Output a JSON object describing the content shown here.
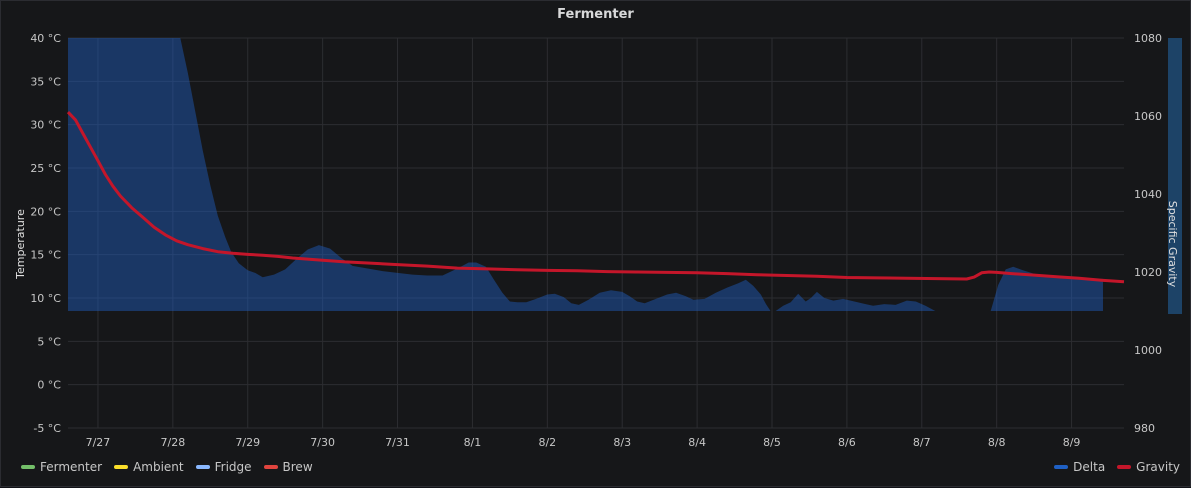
{
  "panel": {
    "title": "Fermenter"
  },
  "chart_data": {
    "type": "line",
    "title": "Fermenter",
    "x_tick_labels": [
      "7/27",
      "7/28",
      "7/29",
      "7/30",
      "7/31",
      "8/1",
      "8/2",
      "8/3",
      "8/4",
      "8/5",
      "8/6",
      "8/7",
      "8/8",
      "8/9"
    ],
    "left_axis": {
      "label": "Temperature",
      "unit": "°C",
      "ticks": [
        "40 °C",
        "35 °C",
        "30 °C",
        "25 °C",
        "20 °C",
        "15 °C",
        "10 °C",
        "5 °C",
        "0 °C",
        "-5 °C"
      ],
      "ylim": [
        -5,
        40
      ]
    },
    "right_axis": {
      "label": "Specific Gravity",
      "ticks": [
        "1080",
        "1060",
        "1040",
        "1020",
        "1000",
        "980"
      ],
      "ylim": [
        980,
        1080
      ]
    },
    "x_range": [
      -0.4,
      13.7
    ],
    "series": [
      {
        "name": "Brew",
        "color": "#e0443e",
        "axis": "left",
        "points": []
      },
      {
        "name": "Delta",
        "color": "#1f60c4",
        "axis": "left",
        "style": "area",
        "baseline": 8.5,
        "points": [
          [
            -0.4,
            40.9
          ],
          [
            1.02,
            40.9
          ],
          [
            1.1,
            40.3
          ],
          [
            1.2,
            36
          ],
          [
            1.3,
            31.5
          ],
          [
            1.4,
            27
          ],
          [
            1.5,
            23
          ],
          [
            1.6,
            19.5
          ],
          [
            1.7,
            17
          ],
          [
            1.78,
            15.3
          ],
          [
            1.88,
            14
          ],
          [
            2.0,
            13.2
          ],
          [
            2.1,
            12.9
          ],
          [
            2.2,
            12.4
          ],
          [
            2.35,
            12.7
          ],
          [
            2.5,
            13.3
          ],
          [
            2.65,
            14.5
          ],
          [
            2.8,
            15.6
          ],
          [
            2.95,
            16.1
          ],
          [
            3.1,
            15.7
          ],
          [
            3.25,
            14.6
          ],
          [
            3.4,
            13.7
          ],
          [
            3.6,
            13.4
          ],
          [
            3.8,
            13.1
          ],
          [
            4.0,
            12.9
          ],
          [
            4.2,
            12.7
          ],
          [
            4.4,
            12.6
          ],
          [
            4.6,
            12.6
          ],
          [
            4.8,
            13.4
          ],
          [
            4.95,
            14.1
          ],
          [
            5.05,
            14.1
          ],
          [
            5.18,
            13.6
          ],
          [
            5.28,
            12.2
          ],
          [
            5.4,
            10.6
          ],
          [
            5.5,
            9.6
          ],
          [
            5.6,
            9.5
          ],
          [
            5.72,
            9.5
          ],
          [
            5.85,
            9.9
          ],
          [
            6.0,
            10.4
          ],
          [
            6.1,
            10.5
          ],
          [
            6.22,
            10.1
          ],
          [
            6.32,
            9.4
          ],
          [
            6.42,
            9.2
          ],
          [
            6.55,
            9.8
          ],
          [
            6.7,
            10.6
          ],
          [
            6.85,
            10.9
          ],
          [
            7.0,
            10.7
          ],
          [
            7.1,
            10.2
          ],
          [
            7.2,
            9.6
          ],
          [
            7.3,
            9.4
          ],
          [
            7.45,
            9.9
          ],
          [
            7.6,
            10.4
          ],
          [
            7.72,
            10.6
          ],
          [
            7.85,
            10.2
          ],
          [
            7.95,
            9.8
          ],
          [
            8.1,
            9.9
          ],
          [
            8.25,
            10.6
          ],
          [
            8.4,
            11.2
          ],
          [
            8.55,
            11.7
          ],
          [
            8.65,
            12.1
          ],
          [
            8.75,
            11.4
          ],
          [
            8.85,
            10.4
          ],
          [
            8.92,
            9.3
          ],
          [
            8.98,
            8.5
          ],
          [
            9.05,
            8.5
          ],
          [
            9.15,
            9.1
          ],
          [
            9.25,
            9.5
          ],
          [
            9.35,
            10.5
          ],
          [
            9.45,
            9.6
          ],
          [
            9.52,
            10.0
          ],
          [
            9.6,
            10.7
          ],
          [
            9.7,
            10.0
          ],
          [
            9.82,
            9.7
          ],
          [
            9.95,
            9.9
          ],
          [
            10.1,
            9.6
          ],
          [
            10.25,
            9.3
          ],
          [
            10.35,
            9.1
          ],
          [
            10.5,
            9.3
          ],
          [
            10.65,
            9.2
          ],
          [
            10.8,
            9.7
          ],
          [
            10.92,
            9.6
          ],
          [
            11.05,
            9.1
          ],
          [
            11.18,
            8.5
          ],
          [
            11.25,
            8.5
          ],
          [
            11.8,
            8.5
          ],
          [
            11.92,
            8.5
          ],
          [
            12.02,
            11.5
          ],
          [
            12.12,
            13.3
          ],
          [
            12.22,
            13.6
          ],
          [
            12.35,
            13.2
          ],
          [
            12.5,
            12.8
          ],
          [
            12.7,
            12.6
          ],
          [
            12.9,
            12.5
          ],
          [
            13.1,
            12.3
          ],
          [
            13.3,
            12.2
          ],
          [
            13.42,
            12.2
          ],
          [
            13.42,
            8.5
          ]
        ]
      },
      {
        "name": "Gravity",
        "color": "#c4162a",
        "axis": "right",
        "points": [
          [
            -0.4,
            1061
          ],
          [
            -0.3,
            1059
          ],
          [
            -0.2,
            1055.5
          ],
          [
            -0.1,
            1052
          ],
          [
            0.0,
            1048.5
          ],
          [
            0.1,
            1045
          ],
          [
            0.2,
            1042
          ],
          [
            0.3,
            1039.5
          ],
          [
            0.45,
            1036.5
          ],
          [
            0.6,
            1034
          ],
          [
            0.75,
            1031.5
          ],
          [
            0.9,
            1029.5
          ],
          [
            1.05,
            1028
          ],
          [
            1.2,
            1027
          ],
          [
            1.4,
            1026
          ],
          [
            1.6,
            1025.2
          ],
          [
            1.8,
            1024.8
          ],
          [
            2.0,
            1024.5
          ],
          [
            2.2,
            1024.3
          ],
          [
            2.4,
            1024
          ],
          [
            2.6,
            1023.6
          ],
          [
            2.8,
            1023.3
          ],
          [
            3.0,
            1023
          ],
          [
            3.3,
            1022.6
          ],
          [
            3.6,
            1022.3
          ],
          [
            4.0,
            1021.9
          ],
          [
            4.4,
            1021.5
          ],
          [
            4.8,
            1021.0
          ],
          [
            5.2,
            1020.8
          ],
          [
            5.6,
            1020.6
          ],
          [
            6.0,
            1020.4
          ],
          [
            6.4,
            1020.3
          ],
          [
            6.8,
            1020.1
          ],
          [
            7.2,
            1020.0
          ],
          [
            7.6,
            1019.9
          ],
          [
            8.0,
            1019.8
          ],
          [
            8.4,
            1019.6
          ],
          [
            8.8,
            1019.3
          ],
          [
            9.2,
            1019.1
          ],
          [
            9.6,
            1018.9
          ],
          [
            10.0,
            1018.6
          ],
          [
            10.4,
            1018.5
          ],
          [
            10.8,
            1018.4
          ],
          [
            11.2,
            1018.3
          ],
          [
            11.6,
            1018.2
          ],
          [
            11.7,
            1018.7
          ],
          [
            11.8,
            1019.8
          ],
          [
            11.9,
            1020.0
          ],
          [
            12.0,
            1019.9
          ],
          [
            12.2,
            1019.6
          ],
          [
            12.5,
            1019.2
          ],
          [
            12.8,
            1018.8
          ],
          [
            13.1,
            1018.4
          ],
          [
            13.4,
            1017.9
          ],
          [
            13.7,
            1017.5
          ]
        ]
      }
    ],
    "legend_left": [
      {
        "name": "Fermenter",
        "color": "#73bf69"
      },
      {
        "name": "Ambient",
        "color": "#fade2a"
      },
      {
        "name": "Fridge",
        "color": "#8ab8ff"
      },
      {
        "name": "Brew",
        "color": "#e0443e"
      }
    ],
    "legend_right": [
      {
        "name": "Delta",
        "color": "#1f60c4"
      },
      {
        "name": "Gravity",
        "color": "#c4162a"
      }
    ],
    "grid": true
  }
}
